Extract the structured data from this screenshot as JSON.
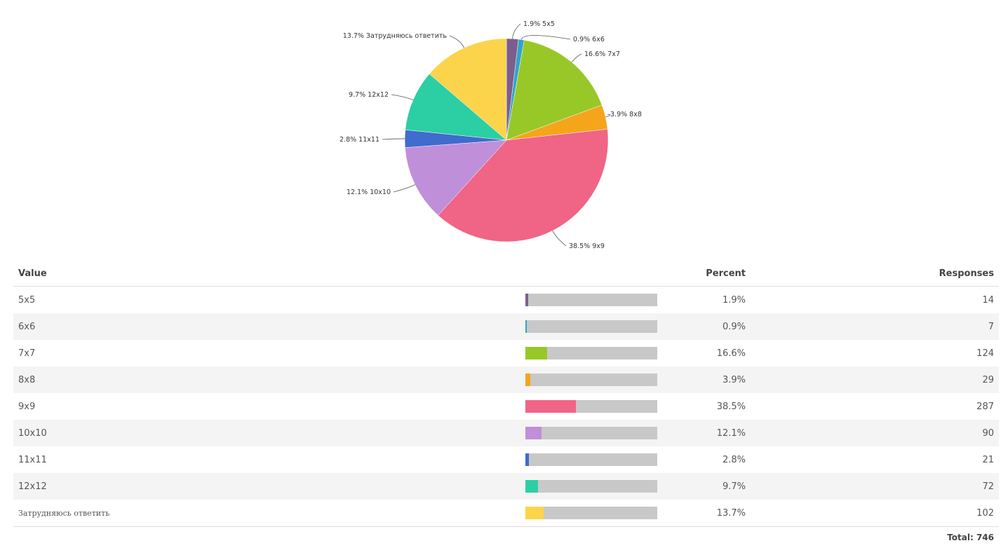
{
  "chart_data": {
    "type": "pie",
    "categories": [
      "5x5",
      "6x6",
      "7x7",
      "8x8",
      "9x9",
      "10x10",
      "11x11",
      "12x12",
      "Затрудняюсь ответить"
    ],
    "values": [
      1.9,
      0.9,
      16.6,
      3.9,
      38.5,
      12.1,
      2.8,
      9.7,
      13.7
    ],
    "labels": [
      "1.9% 5x5",
      "0.9% 6x6",
      "16.6% 7x7",
      "3.9% 8x8",
      "38.5% 9x9",
      "12.1% 10x10",
      "2.8% 11x11",
      "9.7% 12x12",
      "13.7% Затрудняюсь ответить"
    ],
    "colors": [
      "#7b5e8e",
      "#33a3c9",
      "#97c828",
      "#f5a51a",
      "#f06486",
      "#bf8fd9",
      "#3f6ccd",
      "#2bcfa3",
      "#fbd44b"
    ]
  },
  "table": {
    "headers": {
      "value": "Value",
      "percent": "Percent",
      "responses": "Responses"
    },
    "rows": [
      {
        "value": "5x5",
        "percent": "1.9%",
        "responses": "14"
      },
      {
        "value": "6x6",
        "percent": "0.9%",
        "responses": "7"
      },
      {
        "value": "7x7",
        "percent": "16.6%",
        "responses": "124"
      },
      {
        "value": "8x8",
        "percent": "3.9%",
        "responses": "29"
      },
      {
        "value": "9x9",
        "percent": "38.5%",
        "responses": "287"
      },
      {
        "value": "10x10",
        "percent": "12.1%",
        "responses": "90"
      },
      {
        "value": "11x11",
        "percent": "2.8%",
        "responses": "21"
      },
      {
        "value": "12x12",
        "percent": "9.7%",
        "responses": "72"
      },
      {
        "value": "Затрудняюсь ответить",
        "percent": "13.7%",
        "responses": "102"
      }
    ],
    "total": "Total: 746"
  }
}
